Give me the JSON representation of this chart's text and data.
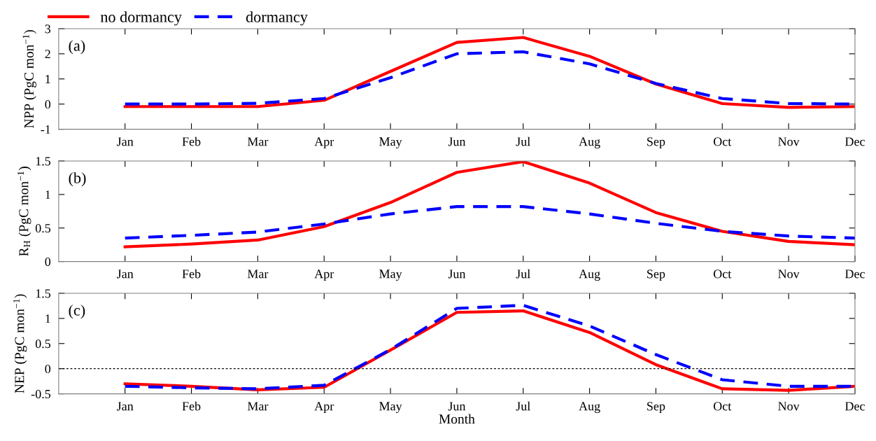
{
  "chart_data": [
    {
      "type": "line",
      "ylabel": "NPP (PgC mon$^{−1}$)",
      "categories": [
        "Jan",
        "Feb",
        "Mar",
        "Apr",
        "May",
        "Jun",
        "Jul",
        "Aug",
        "Sep",
        "Oct",
        "Nov",
        "Dec"
      ],
      "series": [
        {
          "name": "no dormancy",
          "color": "#ff0000",
          "line_style": "solid",
          "values": [
            -0.1,
            -0.1,
            -0.1,
            0.15,
            1.3,
            2.45,
            2.65,
            1.9,
            0.8,
            0.02,
            -0.13,
            -0.1
          ]
        },
        {
          "name": "dormancy",
          "color": "#0000ff",
          "line_style": "dashed",
          "values": [
            0,
            0,
            0.03,
            0.22,
            1.05,
            2.0,
            2.08,
            1.6,
            0.82,
            0.22,
            0.02,
            0.0
          ]
        }
      ],
      "ylim": [
        -1,
        3
      ],
      "yticks": [
        {
          "value": -1,
          "label": "-1"
        },
        0,
        1,
        2,
        3
      ],
      "annotations": [
        "(a)"
      ],
      "legend": "top left",
      "grid": false
    },
    {
      "type": "line",
      "ylabel": "R$_{H}$ (PgC mon$^{−1}$)",
      "categories": [
        "Jan",
        "Feb",
        "Mar",
        "Apr",
        "May",
        "Jun",
        "Jul",
        "Aug",
        "Sep",
        "Oct",
        "Nov",
        "Dec"
      ],
      "series": [
        {
          "color": "#ff0000",
          "line_style": "solid",
          "values": [
            0.22,
            0.26,
            0.32,
            0.52,
            0.88,
            1.33,
            1.49,
            1.17,
            0.73,
            0.45,
            0.3,
            0.25
          ]
        },
        {
          "color": "#0000ff",
          "line_style": "dashed",
          "values": [
            0.35,
            0.39,
            0.44,
            0.56,
            0.71,
            0.82,
            0.82,
            0.71,
            0.57,
            0.45,
            0.38,
            0.35
          ]
        }
      ],
      "ylim": [
        0,
        1.5
      ],
      "yticks": [
        0,
        0.5,
        1,
        1.5
      ],
      "annotations": [
        "(b)"
      ],
      "legend": false,
      "grid": false
    },
    {
      "type": "line",
      "xlabel": "Month",
      "ylabel": "NEP (PgC mon$^{−1}$)",
      "categories": [
        "Jan",
        "Feb",
        "Mar",
        "Apr",
        "May",
        "Jun",
        "Jul",
        "Aug",
        "Sep",
        "Oct",
        "Nov",
        "Dec"
      ],
      "series": [
        {
          "color": "#ff0000",
          "line_style": "solid",
          "values": [
            -0.3,
            -0.35,
            -0.42,
            -0.37,
            0.37,
            1.12,
            1.15,
            0.72,
            0.08,
            -0.4,
            -0.43,
            -0.35
          ]
        },
        {
          "color": "#0000ff",
          "line_style": "dashed",
          "values": [
            -0.35,
            -0.38,
            -0.4,
            -0.33,
            0.38,
            1.2,
            1.26,
            0.85,
            0.28,
            -0.22,
            -0.35,
            -0.35
          ]
        }
      ],
      "ylim": [
        -0.5,
        1.5
      ],
      "yticks": [
        {
          "value": -0.5,
          "label": "-0.5"
        },
        0,
        0.5,
        1,
        1.5
      ],
      "annotations": [
        "(c)"
      ],
      "ref_lines": [
        {
          "axis": "y",
          "value": 0,
          "color": "#000000",
          "line_style": "dotted"
        }
      ],
      "legend": false,
      "grid": false
    }
  ]
}
